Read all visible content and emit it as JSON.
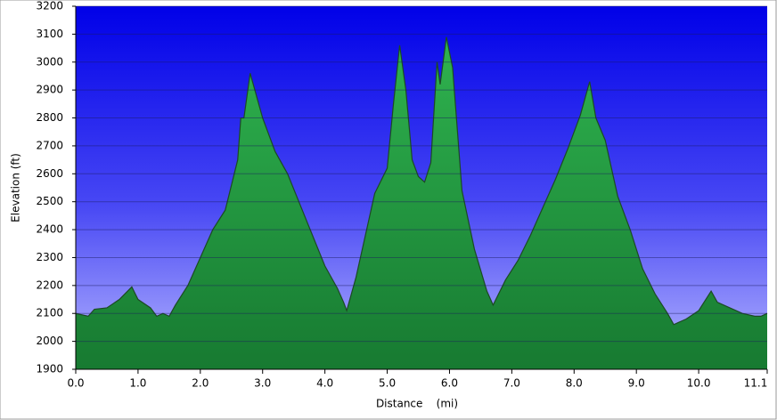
{
  "chart_data": {
    "type": "area",
    "xlabel": "Distance    (mi)",
    "ylabel": "Elevation (ft)",
    "x": [
      0.0,
      0.2,
      0.3,
      0.5,
      0.7,
      0.9,
      1.0,
      1.2,
      1.3,
      1.4,
      1.5,
      1.6,
      1.8,
      2.0,
      2.2,
      2.4,
      2.6,
      2.65,
      2.7,
      2.8,
      2.9,
      3.0,
      3.2,
      3.4,
      3.6,
      3.8,
      4.0,
      4.2,
      4.3,
      4.35,
      4.4,
      4.5,
      4.6,
      4.8,
      5.0,
      5.1,
      5.2,
      5.3,
      5.4,
      5.5,
      5.6,
      5.7,
      5.8,
      5.85,
      5.95,
      6.05,
      6.2,
      6.4,
      6.6,
      6.7,
      6.9,
      7.1,
      7.3,
      7.5,
      7.7,
      7.9,
      8.1,
      8.25,
      8.35,
      8.5,
      8.7,
      8.9,
      9.1,
      9.3,
      9.5,
      9.6,
      9.8,
      10.0,
      10.2,
      10.3,
      10.5,
      10.7,
      10.9,
      11.0,
      11.1
    ],
    "values": [
      2100,
      2090,
      2115,
      2120,
      2150,
      2195,
      2150,
      2120,
      2090,
      2100,
      2090,
      2130,
      2200,
      2300,
      2400,
      2470,
      2650,
      2800,
      2800,
      2960,
      2880,
      2800,
      2680,
      2600,
      2490,
      2380,
      2270,
      2190,
      2140,
      2110,
      2150,
      2230,
      2330,
      2530,
      2620,
      2850,
      3060,
      2900,
      2650,
      2590,
      2570,
      2640,
      3000,
      2920,
      3090,
      2980,
      2540,
      2330,
      2180,
      2130,
      2220,
      2290,
      2380,
      2480,
      2580,
      2690,
      2810,
      2930,
      2800,
      2720,
      2520,
      2400,
      2260,
      2170,
      2100,
      2060,
      2080,
      2110,
      2180,
      2140,
      2120,
      2100,
      2090,
      2090,
      2100
    ],
    "color": "#1f9a3e",
    "xlim": [
      0,
      11.1
    ],
    "ylim": [
      1900,
      3200
    ],
    "xticks": [
      {
        "value": 0,
        "label": "0.0"
      },
      {
        "value": 1,
        "label": "1.0"
      },
      {
        "value": 2,
        "label": "2.0"
      },
      {
        "value": 3,
        "label": "3.0"
      },
      {
        "value": 4,
        "label": "4.0"
      },
      {
        "value": 5,
        "label": "5.0"
      },
      {
        "value": 6,
        "label": "6.0"
      },
      {
        "value": 7,
        "label": "7.0"
      },
      {
        "value": 8,
        "label": "8.0"
      },
      {
        "value": 9,
        "label": "9.0"
      },
      {
        "value": 10,
        "label": "10.0"
      },
      11.1
    ],
    "yticks": [
      1900,
      2000,
      2100,
      2200,
      2300,
      2400,
      2500,
      2600,
      2700,
      2800,
      2900,
      3000,
      3100,
      3200
    ],
    "grid": true
  }
}
